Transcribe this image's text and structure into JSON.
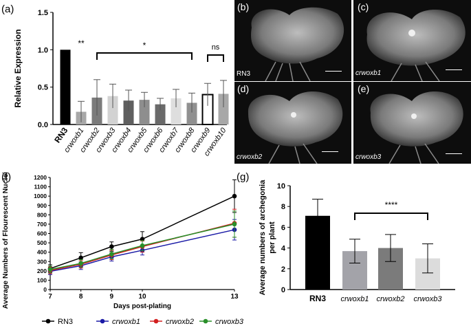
{
  "panel_labels": {
    "a": "(a)",
    "b": "(b)",
    "c": "(c)",
    "d": "(d)",
    "e": "(e)",
    "f": "(f)",
    "g": "(g)"
  },
  "photos": [
    {
      "id": "b",
      "caption": "RN3"
    },
    {
      "id": "c",
      "caption": "crwoxb1"
    },
    {
      "id": "d",
      "caption": "crwoxb2"
    },
    {
      "id": "e",
      "caption": "crwoxb3"
    }
  ],
  "chart_data": [
    {
      "id": "a",
      "type": "bar",
      "ylabel": "Relative Expression",
      "ylim": [
        0,
        1.5
      ],
      "yticks": [
        "0.0",
        "0.5",
        "1.0",
        "1.5"
      ],
      "categories": [
        "RN3",
        "crwoxb1",
        "crwoxb2",
        "crwoxb3",
        "crwoxb4",
        "crwoxb5",
        "crwoxb6",
        "crwoxb7",
        "crwoxb8",
        "crwoxb9",
        "crwoxb10"
      ],
      "values": [
        1.0,
        0.17,
        0.36,
        0.38,
        0.32,
        0.33,
        0.27,
        0.35,
        0.29,
        0.4,
        0.41
      ],
      "errors": [
        0,
        0.14,
        0.24,
        0.16,
        0.14,
        0.1,
        0.08,
        0.12,
        0.13,
        0.15,
        0.18
      ],
      "colors": [
        "#000000",
        "#a8a8a8",
        "#7b7b7b",
        "#d2d2d2",
        "#5f5f5f",
        "#8e8e8e",
        "#6a6a6a",
        "#dedede",
        "#909090",
        "#ffffff",
        "#a8a8a8"
      ],
      "annotations": {
        "sig_b1": "**",
        "sig_b2_b8": "*",
        "sig_b9_b10": "ns"
      }
    },
    {
      "id": "f",
      "type": "line",
      "xlabel": "Days post-plating",
      "ylabel": "Average Numbers of Flourescent Nuclei",
      "x": [
        7,
        8,
        9,
        10,
        13
      ],
      "xticks": [
        "7",
        "8",
        "9",
        "10",
        "13"
      ],
      "ylim": [
        0,
        1200
      ],
      "yticks": [
        "0",
        "100",
        "200",
        "300",
        "400",
        "500",
        "600",
        "700",
        "800",
        "900",
        "1000",
        "1100",
        "1200"
      ],
      "series": [
        {
          "name": "RN3",
          "color": "#000000",
          "values": [
            225,
            340,
            460,
            540,
            1000
          ],
          "errors": [
            40,
            55,
            50,
            80,
            175
          ]
        },
        {
          "name": "crwoxb1",
          "color": "#1a1aa6",
          "values": [
            195,
            255,
            350,
            420,
            640
          ],
          "errors": [
            35,
            40,
            45,
            50,
            110
          ]
        },
        {
          "name": "crwoxb2",
          "color": "#d21f1f",
          "values": [
            205,
            270,
            370,
            460,
            710
          ],
          "errors": [
            35,
            40,
            50,
            60,
            150
          ]
        },
        {
          "name": "crwoxb3",
          "color": "#2a8f2a",
          "values": [
            215,
            280,
            380,
            470,
            700
          ],
          "errors": [
            35,
            40,
            50,
            55,
            140
          ]
        }
      ]
    },
    {
      "id": "g",
      "type": "bar",
      "ylabel": "Average numbers of archegonia per plant",
      "ylim": [
        0,
        10
      ],
      "yticks": [
        "0",
        "2",
        "4",
        "6",
        "8",
        "10"
      ],
      "categories": [
        "RN3",
        "crwoxb1",
        "crwoxb2",
        "crwoxb3"
      ],
      "values": [
        7.1,
        3.7,
        4.0,
        3.0
      ],
      "errors": [
        1.6,
        1.15,
        1.3,
        1.4
      ],
      "colors": [
        "#000000",
        "#a3a3a9",
        "#7b7b7b",
        "#dcdcdc"
      ],
      "annotations": {
        "sig": "****"
      }
    }
  ]
}
